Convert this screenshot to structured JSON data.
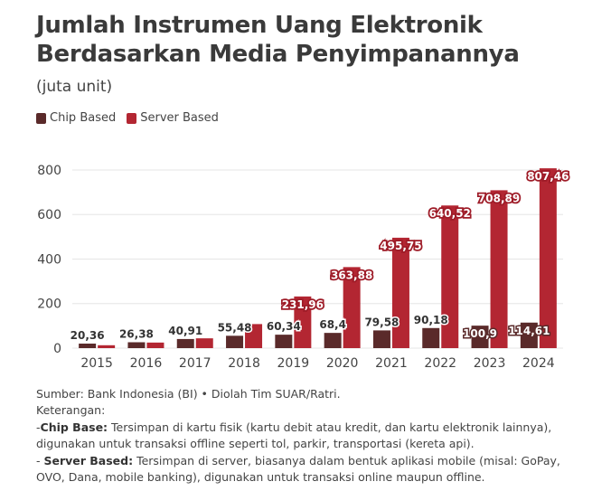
{
  "title_line1": "Jumlah Instrumen Uang Elektronik",
  "title_line2": "Berdasarkan Media Penyimpanannya",
  "subtitle": "(juta unit)",
  "colors": {
    "chip": "#5a2a2a",
    "server": "#b32632",
    "label_bg": "#9e1b27",
    "grid": "#e6e6e6",
    "axis_text": "#444444"
  },
  "legend": [
    {
      "label": "Chip Based",
      "color": "#5a2a2a"
    },
    {
      "label": "Server Based",
      "color": "#b32632"
    }
  ],
  "chart_data": {
    "type": "bar",
    "title": "Jumlah Instrumen Uang Elektronik Berdasarkan Media Penyimpanannya",
    "subtitle": "(juta unit)",
    "categories": [
      "2015",
      "2016",
      "2017",
      "2018",
      "2019",
      "2020",
      "2021",
      "2022",
      "2023",
      "2024"
    ],
    "series": [
      {
        "name": "Chip Based",
        "values": [
          20.36,
          26.38,
          40.91,
          55.48,
          60.34,
          68.4,
          79.58,
          90.18,
          100.9,
          114.61
        ],
        "labels": [
          "20,36",
          "26,38",
          "40,91",
          "55,48",
          "60,34",
          "68,4",
          "79,58",
          "90,18",
          "100,9",
          "114,61"
        ]
      },
      {
        "name": "Server Based",
        "values": [
          13,
          25,
          44,
          108,
          231.96,
          363.88,
          495.75,
          640.52,
          708.89,
          807.46
        ],
        "labels": [
          "",
          "",
          "",
          "",
          "231,96",
          "363,88",
          "495,75",
          "640,52",
          "708,89",
          "807,46"
        ]
      }
    ],
    "yticks": [
      0,
      200,
      400,
      600,
      800
    ],
    "ylim": [
      0,
      840
    ],
    "grid": true,
    "legend_position": "top-left"
  },
  "notes": {
    "source": "Sumber: Bank Indonesia (BI) • Diolah Tim SUAR/Ratri.",
    "heading": "Keterangan:",
    "chip_prefix": "-",
    "chip_term": "Chip Base:",
    "chip_desc_1": " Tersimpan di kartu fisik (kartu debit atau kredit, dan kartu elektronik lainnya),",
    "chip_desc_2": "digunakan untuk transaksi offline seperti tol, parkir, transportasi (kereta api).",
    "server_prefix": "- ",
    "server_term": "Server Based:",
    "server_desc_1": " Tersimpan di server, biasanya dalam bentuk aplikasi mobile (misal: GoPay,",
    "server_desc_2": "OVO, Dana, mobile banking), digunakan untuk transaksi online maupun offline."
  }
}
